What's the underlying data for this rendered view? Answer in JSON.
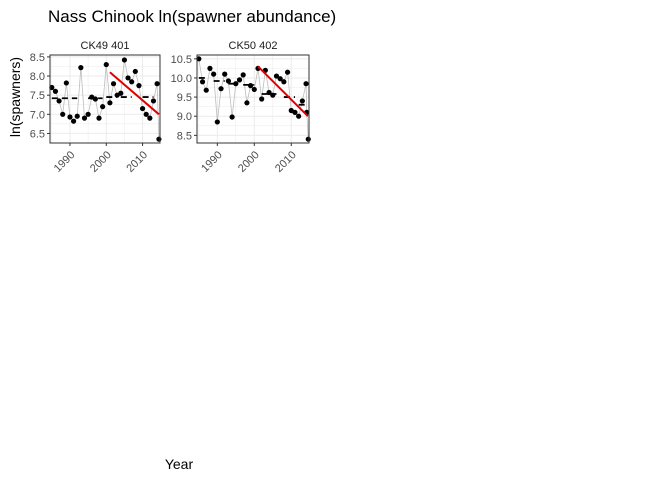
{
  "chart_data": {
    "type": "scatter",
    "title": "Nass Chinook ln(spawner abundance)",
    "xlabel": "Year",
    "ylabel": "ln(spawners)",
    "grid": true,
    "legend": "none",
    "colors": {
      "points": "#000000",
      "connector": "#bdbdbd",
      "mean_line": "#000000",
      "trend_line": "#e00000",
      "grid": "#ebebeb",
      "panel_border": "#333333",
      "strip_background": "#ffffff"
    },
    "panels": [
      {
        "strip": "CK49 401",
        "xlim": [
          1984.5,
          2014.8
        ],
        "ylim": [
          6.25,
          8.55
        ],
        "x_ticks": [
          1990,
          2000,
          2010
        ],
        "x_tick_labels": [
          "1990",
          "2000",
          "2010"
        ],
        "y_ticks": [
          6.5,
          7.0,
          7.5,
          8.0,
          8.5
        ],
        "y_tick_labels": [
          "6.5",
          "7.0",
          "7.5",
          "8.0",
          "8.5"
        ],
        "x": [
          1985,
          1986,
          1987,
          1988,
          1989,
          1990,
          1991,
          1992,
          1993,
          1994,
          1995,
          1996,
          1997,
          1998,
          1999,
          2000,
          2001,
          2002,
          2003,
          2004,
          2005,
          2006,
          2007,
          2008,
          2009,
          2010,
          2011,
          2012,
          2013,
          2014
        ],
        "y": [
          7.7,
          7.6,
          7.35,
          7.0,
          7.82,
          6.93,
          6.82,
          6.95,
          8.22,
          6.9,
          7.0,
          7.45,
          7.4,
          6.9,
          7.2,
          8.3,
          7.3,
          7.8,
          7.5,
          7.55,
          8.42,
          7.95,
          7.85,
          8.12,
          7.75,
          7.15,
          7.0,
          6.9,
          7.35,
          7.8
        ],
        "x_extra": [
          2014.5
        ],
        "y_extra": [
          6.35
        ],
        "mean_segments": [
          {
            "x": [
              1985,
              1992
            ],
            "y": 7.42
          },
          {
            "x": [
              1995,
              1999
            ],
            "y": 7.42
          },
          {
            "x": [
              2000,
              2003
            ],
            "y": 7.45
          },
          {
            "x": [
              2004,
              2007
            ],
            "y": 7.45
          },
          {
            "x": [
              2010,
              2013
            ],
            "y": 7.45
          }
        ],
        "trend": {
          "x": [
            2001,
            2014.5
          ],
          "y": [
            8.1,
            7.0
          ]
        }
      },
      {
        "strip": "CK50 402",
        "xlim": [
          1984.5,
          2014.8
        ],
        "ylim": [
          8.3,
          10.6
        ],
        "x_ticks": [
          1990,
          2000,
          2010
        ],
        "x_tick_labels": [
          "1990",
          "2000",
          "2010"
        ],
        "y_ticks": [
          8.5,
          9.0,
          9.5,
          10.0,
          10.5
        ],
        "y_tick_labels": [
          "8.5",
          "9.0",
          "9.5",
          "10.0",
          "10.5"
        ],
        "x": [
          1985,
          1986,
          1987,
          1988,
          1989,
          1990,
          1991,
          1992,
          1993,
          1994,
          1995,
          1996,
          1997,
          1998,
          1999,
          2000,
          2001,
          2002,
          2003,
          2004,
          2005,
          2006,
          2007,
          2008,
          2009,
          2010,
          2011,
          2012,
          2013,
          2014
        ],
        "y": [
          10.5,
          9.9,
          9.68,
          10.25,
          10.1,
          8.85,
          9.72,
          10.1,
          9.92,
          8.98,
          9.85,
          9.95,
          10.08,
          9.35,
          9.8,
          9.7,
          10.25,
          9.45,
          10.2,
          9.62,
          9.55,
          10.05,
          9.98,
          9.9,
          10.15,
          9.15,
          9.1,
          9.0,
          9.4,
          9.85
        ],
        "x_extra": [
          2014.2,
          2014.6
        ],
        "y_extra": [
          9.1,
          8.4
        ],
        "mean_segments": [
          {
            "x": [
              1985,
              1987
            ],
            "y": 10.0
          },
          {
            "x": [
              1989,
              1992
            ],
            "y": 9.92
          },
          {
            "x": [
              1993,
              1995
            ],
            "y": 9.85
          },
          {
            "x": [
              1997,
              2000
            ],
            "y": 9.82
          },
          {
            "x": [
              2002,
              2006
            ],
            "y": 9.58
          },
          {
            "x": [
              2008,
              2011
            ],
            "y": 9.5
          },
          {
            "x": [
              2012,
              2014.5
            ],
            "y": 9.3
          }
        ],
        "trend": {
          "x": [
            2001,
            2014.5
          ],
          "y": [
            10.3,
            9.0
          ]
        }
      }
    ]
  }
}
